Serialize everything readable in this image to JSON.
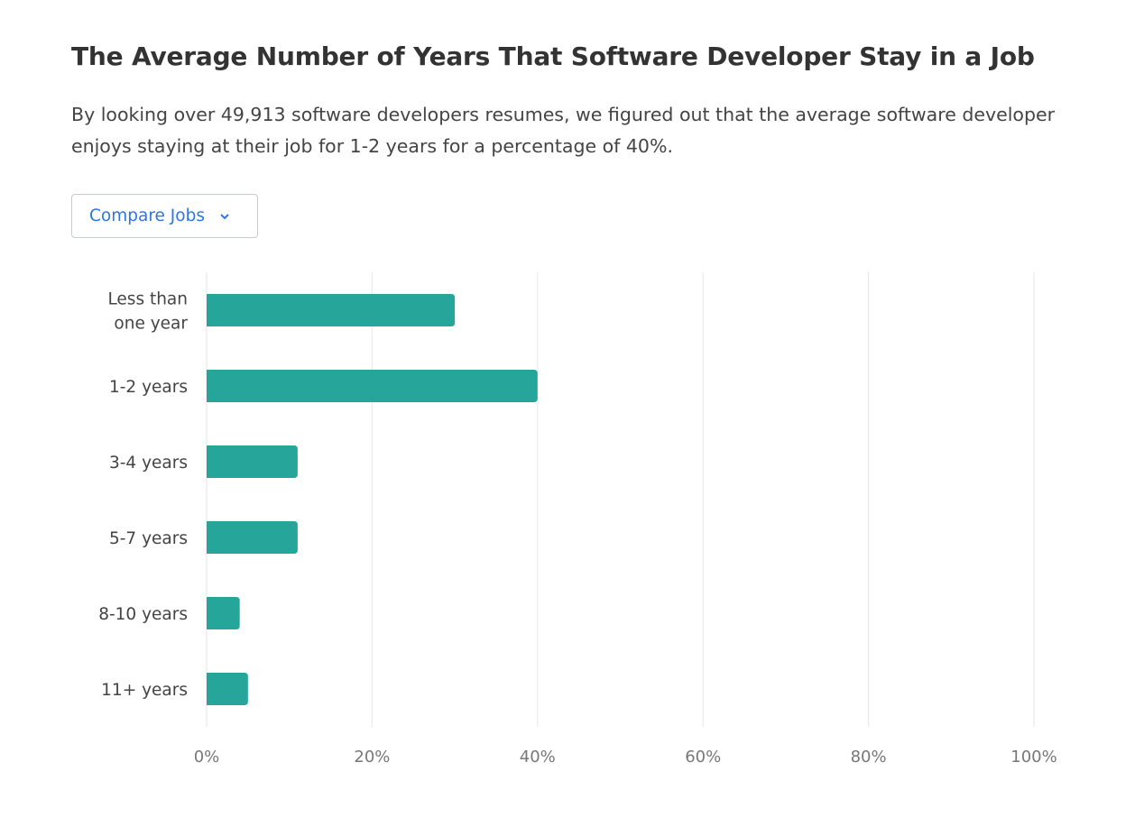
{
  "header": {
    "title": "The Average Number of Years That Software Developer Stay in a Job",
    "description": "By looking over 49,913 software developers resumes, we figured out that the average software developer enjoys staying at their job for 1-2 years for a percentage of 40%."
  },
  "compare_button": {
    "label": "Compare Jobs",
    "icon": "chevron-down-icon"
  },
  "colors": {
    "bar": "#26a69a",
    "accent": "#2f74e8",
    "grid": "#e6e6e6"
  },
  "chart_data": {
    "type": "bar",
    "orientation": "horizontal",
    "categories": [
      [
        "Less than",
        "one year"
      ],
      [
        "1-2 years"
      ],
      [
        "3-4 years"
      ],
      [
        "5-7 years"
      ],
      [
        "8-10 years"
      ],
      [
        "11+ years"
      ]
    ],
    "values": [
      30,
      40,
      11,
      11,
      4,
      5
    ],
    "xlim": [
      0,
      100
    ],
    "xticks": [
      "0%",
      "20%",
      "40%",
      "60%",
      "80%",
      "100%"
    ],
    "grid": "vertical",
    "unit": "%"
  }
}
